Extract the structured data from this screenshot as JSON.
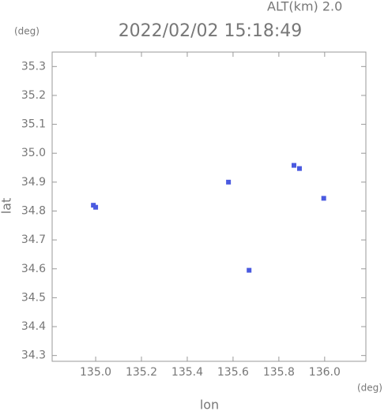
{
  "chart_data": {
    "type": "scatter",
    "title": "2022/02/02 15:18:49",
    "annotation": "ALT(km) 2.0",
    "y_unit": "(deg)",
    "x_unit": "(deg)",
    "x_label": "lon",
    "y_label": "lat",
    "xlim": [
      134.81,
      136.18
    ],
    "ylim": [
      34.28,
      35.35
    ],
    "xticks": [
      {
        "value": 135,
        "label": "135.0"
      },
      135.2,
      135.4,
      135.6,
      135.8,
      {
        "value": 136,
        "label": "136.0"
      }
    ],
    "yticks": [
      35.3,
      35.2,
      35.1,
      {
        "value": 35,
        "label": "35.0"
      },
      34.9,
      34.8,
      34.7,
      34.6,
      34.5,
      34.4,
      34.3
    ],
    "color": "#4a5ae0",
    "x": [
      135.0,
      134.99,
      135.58,
      135.67,
      135.866,
      135.89,
      135.996
    ],
    "values": [
      34.813,
      34.82,
      34.9,
      34.595,
      34.958,
      34.947,
      34.844
    ]
  }
}
